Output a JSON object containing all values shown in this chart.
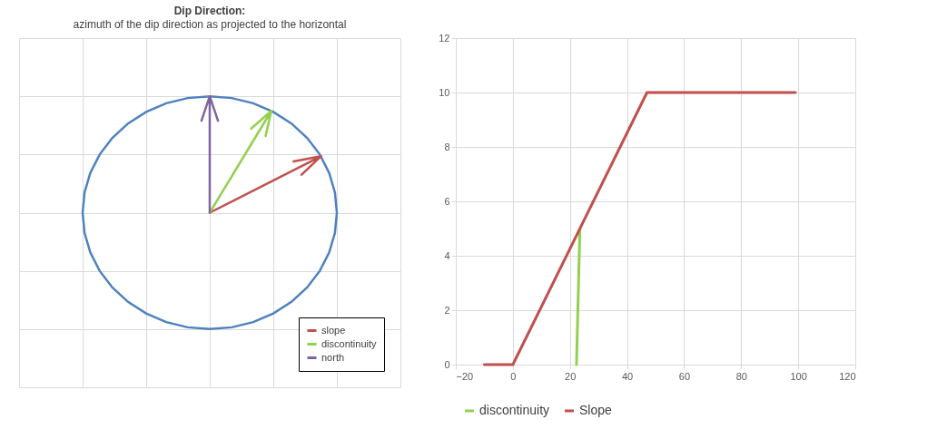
{
  "chart_data": [
    {
      "type": "other",
      "title": "Dip Direction:",
      "subtitle": "azimuth of the dip direction as projected to the horizontal",
      "legend": "bottom right",
      "series": [
        {
          "name": "slope",
          "color": "#c0504d"
        },
        {
          "name": "discontinuity",
          "color": "#92d050"
        },
        {
          "name": "north",
          "color": "#8064a2"
        }
      ]
    },
    {
      "type": "line",
      "xlim": [
        -20,
        120
      ],
      "xticks": [
        -20,
        0,
        20,
        40,
        60,
        80,
        100,
        120
      ],
      "ylim": [
        0,
        12
      ],
      "yticks": [
        0,
        2,
        4,
        6,
        8,
        10,
        12
      ],
      "grid": true,
      "legend": "bottom",
      "series": [
        {
          "name": "discontinuity",
          "color": "#92d050",
          "x": [
            22.3,
            23.5
          ],
          "values": [
            0,
            5
          ]
        },
        {
          "name": "Slope",
          "color": "#c0504d",
          "x": [
            -10,
            0,
            47,
            99
          ],
          "values": [
            0,
            0,
            10,
            10
          ]
        }
      ]
    }
  ]
}
